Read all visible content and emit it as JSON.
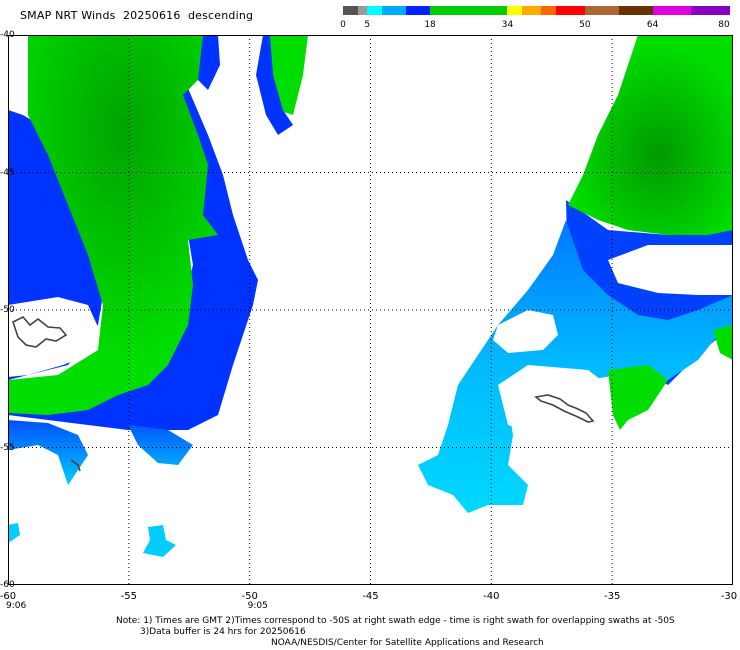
{
  "header": {
    "title": "SMAP NRT Winds  20250616  descending"
  },
  "colorbar": {
    "ticks": [
      {
        "label": "0",
        "value": 0
      },
      {
        "label": "5",
        "value": 5
      },
      {
        "label": "18",
        "value": 18
      },
      {
        "label": "34",
        "value": 34
      },
      {
        "label": "50",
        "value": 50
      },
      {
        "label": "64",
        "value": 64
      },
      {
        "label": "80",
        "value": 80
      }
    ],
    "segments": [
      {
        "from": 0,
        "to": 3,
        "color": "#555555"
      },
      {
        "from": 3,
        "to": 5,
        "color": "#9a9a9a"
      },
      {
        "from": 5,
        "to": 8,
        "color": "#00ffff"
      },
      {
        "from": 8,
        "to": 13,
        "color": "#00aaff"
      },
      {
        "from": 13,
        "to": 18,
        "color": "#0022ff"
      },
      {
        "from": 18,
        "to": 34,
        "color": "#00cc00"
      },
      {
        "from": 34,
        "to": 37,
        "color": "#ffff00"
      },
      {
        "from": 37,
        "to": 41,
        "color": "#ffaa00"
      },
      {
        "from": 41,
        "to": 44,
        "color": "#ff6600"
      },
      {
        "from": 44,
        "to": 50,
        "color": "#ff0000"
      },
      {
        "from": 50,
        "to": 57,
        "color": "#aa6633"
      },
      {
        "from": 57,
        "to": 64,
        "color": "#663300"
      },
      {
        "from": 64,
        "to": 72,
        "color": "#dd00dd"
      },
      {
        "from": 72,
        "to": 80,
        "color": "#8800bb"
      }
    ]
  },
  "map": {
    "lon_range": [
      -60,
      -30
    ],
    "lat_range": [
      -60,
      -40
    ],
    "lon_ticks": [
      {
        "label": "-60",
        "value": -60
      },
      {
        "label": "-55",
        "value": -55
      },
      {
        "label": "-50",
        "value": -50
      },
      {
        "label": "-45",
        "value": -45
      },
      {
        "label": "-40",
        "value": -40
      },
      {
        "label": "-35",
        "value": -35
      },
      {
        "label": "-30",
        "value": -30
      }
    ],
    "lat_ticks": [
      {
        "label": "-40",
        "value": -40
      },
      {
        "label": "-45",
        "value": -45
      },
      {
        "label": "-50",
        "value": -50
      },
      {
        "label": "-55",
        "value": -55
      },
      {
        "label": "-60",
        "value": -60
      }
    ],
    "time_labels": [
      {
        "label": "9:06",
        "lon": -60
      },
      {
        "label": "9:05",
        "lon": -50
      }
    ],
    "wind_colors": {
      "green": "#00dd00",
      "dark_green": "#00aa00",
      "blue": "#0033ff",
      "mid_blue": "#0088ff",
      "light_blue": "#00bbff",
      "cyan": "#00ddff",
      "coast": "#444444"
    }
  },
  "notes": {
    "line1": "Note: 1) Times are GMT 2)Times correspond to -50S at right swath edge - time is right swath for overlapping swaths at -50S",
    "line2": "3)Data buffer is 24 hrs for 20250616",
    "line3": "NOAA/NESDIS/Center for Satellite Applications and Research"
  }
}
